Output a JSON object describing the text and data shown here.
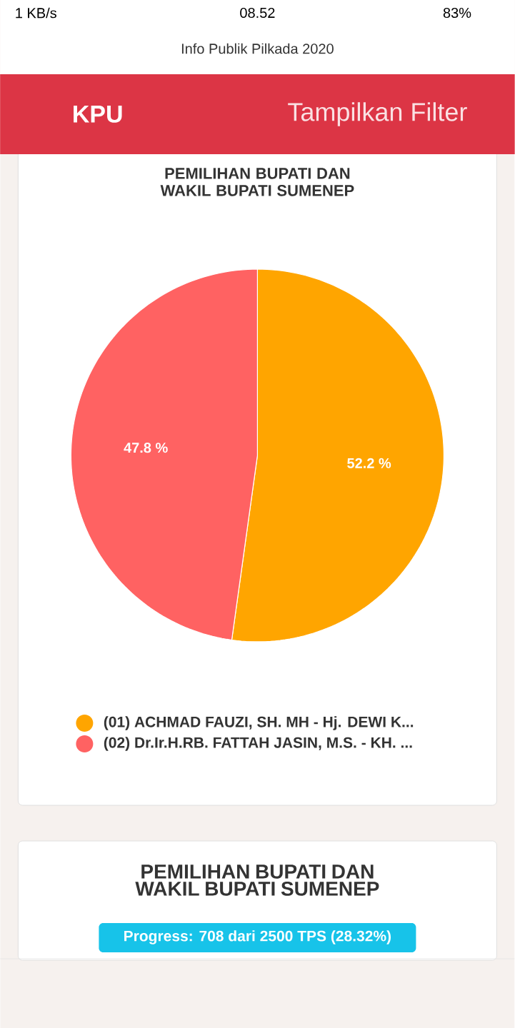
{
  "chart_data": {
    "type": "pie",
    "title": "PEMILIHAN BUPATI DAN WAKIL BUPATI SUMENEP",
    "categories": [
      "(01) ACHMAD FAUZI, SH. MH - Hj. DEWI K...",
      "(02) Dr.Ir.H.RB. FATTAH JASIN, M.S. - KH. ..."
    ],
    "values": [
      52.2,
      47.8
    ],
    "colors": [
      "#ffa500",
      "#ff6262"
    ],
    "value_labels": [
      "52.2 %",
      "47.8 %"
    ],
    "legend": "bottom",
    "annotations": [
      "1 KB/s",
      "08.52",
      "83%",
      "Info Publik Pilkada 2020",
      "KPU",
      "Tampilkan Filter",
      "PEMILIHAN BUPATI DAN WAKIL BUPATI SUMENEP",
      "Progress: 708 dari 2500 TPS (28.32%)"
    ]
  }
}
